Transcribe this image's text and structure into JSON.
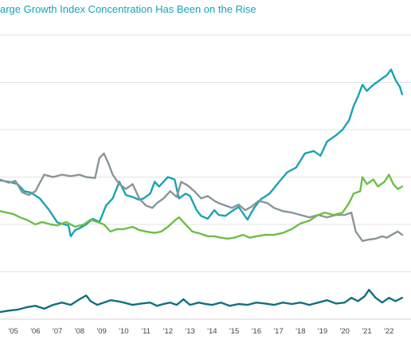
{
  "chart_data": {
    "type": "line",
    "title": "arge Growth Index Concentration Has Been on the Rise",
    "xlabel": "",
    "ylabel": "",
    "x_tick_labels": [
      "'05",
      "'06",
      "'07",
      "'08",
      "'09",
      "'10",
      "'11",
      "'12",
      "'13",
      "'14",
      "'15",
      "'16",
      "'17",
      "'18",
      "'19",
      "'20",
      "'21",
      "'22"
    ],
    "x_tick_years": [
      2005,
      2006,
      2007,
      2008,
      2009,
      2010,
      2011,
      2012,
      2013,
      2014,
      2015,
      2016,
      2017,
      2018,
      2019,
      2020,
      2021,
      2022
    ],
    "xlim": [
      2004.4,
      2023.0
    ],
    "ylim": [
      0,
      6
    ],
    "grid_lines": [
      1,
      2,
      3,
      4,
      5,
      6
    ],
    "grid": true,
    "legend": "none",
    "series": [
      {
        "color": "#1aa3b3",
        "points": [
          [
            2004.4,
            2.93
          ],
          [
            2004.8,
            2.9
          ],
          [
            2005.2,
            2.85
          ],
          [
            2005.5,
            2.7
          ],
          [
            2005.8,
            2.67
          ],
          [
            2006.2,
            2.55
          ],
          [
            2006.6,
            2.32
          ],
          [
            2007.0,
            2.04
          ],
          [
            2007.3,
            2.0
          ],
          [
            2007.5,
            1.98
          ],
          [
            2007.6,
            1.75
          ],
          [
            2007.8,
            1.88
          ],
          [
            2008.0,
            1.92
          ],
          [
            2008.3,
            2.0
          ],
          [
            2008.6,
            2.12
          ],
          [
            2008.9,
            2.05
          ],
          [
            2009.2,
            2.4
          ],
          [
            2009.5,
            2.55
          ],
          [
            2009.8,
            2.9
          ],
          [
            2010.1,
            2.62
          ],
          [
            2010.4,
            2.58
          ],
          [
            2010.7,
            2.52
          ],
          [
            2010.9,
            2.55
          ],
          [
            2011.2,
            2.65
          ],
          [
            2011.4,
            2.9
          ],
          [
            2011.6,
            2.8
          ],
          [
            2012.0,
            3.0
          ],
          [
            2012.3,
            2.95
          ],
          [
            2012.5,
            2.55
          ],
          [
            2012.8,
            2.65
          ],
          [
            2013.0,
            2.6
          ],
          [
            2013.3,
            2.3
          ],
          [
            2013.5,
            2.18
          ],
          [
            2013.8,
            2.12
          ],
          [
            2014.1,
            2.3
          ],
          [
            2014.3,
            2.2
          ],
          [
            2014.6,
            2.18
          ],
          [
            2014.9,
            2.28
          ],
          [
            2015.2,
            2.37
          ],
          [
            2015.6,
            2.1
          ],
          [
            2015.9,
            2.35
          ],
          [
            2016.2,
            2.53
          ],
          [
            2016.6,
            2.65
          ],
          [
            2017.0,
            2.88
          ],
          [
            2017.4,
            3.1
          ],
          [
            2017.8,
            3.2
          ],
          [
            2018.2,
            3.5
          ],
          [
            2018.6,
            3.55
          ],
          [
            2018.9,
            3.45
          ],
          [
            2019.2,
            3.75
          ],
          [
            2019.6,
            3.88
          ],
          [
            2019.9,
            4.0
          ],
          [
            2020.2,
            4.2
          ],
          [
            2020.4,
            4.5
          ],
          [
            2020.6,
            4.7
          ],
          [
            2020.8,
            4.95
          ],
          [
            2021.0,
            4.82
          ],
          [
            2021.3,
            4.95
          ],
          [
            2021.6,
            5.05
          ],
          [
            2021.9,
            5.15
          ],
          [
            2022.1,
            5.27
          ],
          [
            2022.3,
            5.05
          ],
          [
            2022.5,
            4.9
          ],
          [
            2022.6,
            4.75
          ]
        ]
      },
      {
        "color": "#8a9598",
        "points": [
          [
            2004.4,
            2.95
          ],
          [
            2004.8,
            2.88
          ],
          [
            2005.1,
            2.92
          ],
          [
            2005.4,
            2.68
          ],
          [
            2005.7,
            2.62
          ],
          [
            2006.0,
            2.7
          ],
          [
            2006.4,
            3.05
          ],
          [
            2006.8,
            3.0
          ],
          [
            2007.2,
            3.05
          ],
          [
            2007.6,
            3.02
          ],
          [
            2008.0,
            3.05
          ],
          [
            2008.3,
            3.0
          ],
          [
            2008.7,
            2.98
          ],
          [
            2008.9,
            3.4
          ],
          [
            2009.1,
            3.5
          ],
          [
            2009.3,
            3.3
          ],
          [
            2009.5,
            3.05
          ],
          [
            2009.8,
            2.85
          ],
          [
            2010.1,
            2.75
          ],
          [
            2010.4,
            2.85
          ],
          [
            2010.7,
            2.55
          ],
          [
            2011.0,
            2.4
          ],
          [
            2011.3,
            2.35
          ],
          [
            2011.5,
            2.45
          ],
          [
            2011.8,
            2.55
          ],
          [
            2012.1,
            2.7
          ],
          [
            2012.4,
            2.58
          ],
          [
            2012.6,
            2.9
          ],
          [
            2012.9,
            2.82
          ],
          [
            2013.2,
            2.7
          ],
          [
            2013.5,
            2.55
          ],
          [
            2013.8,
            2.6
          ],
          [
            2014.1,
            2.5
          ],
          [
            2014.3,
            2.45
          ],
          [
            2014.6,
            2.4
          ],
          [
            2014.9,
            2.35
          ],
          [
            2015.2,
            2.42
          ],
          [
            2015.5,
            2.3
          ],
          [
            2015.8,
            2.38
          ],
          [
            2016.1,
            2.5
          ],
          [
            2016.5,
            2.45
          ],
          [
            2016.8,
            2.35
          ],
          [
            2017.2,
            2.28
          ],
          [
            2017.6,
            2.25
          ],
          [
            2018.0,
            2.2
          ],
          [
            2018.4,
            2.15
          ],
          [
            2018.8,
            2.2
          ],
          [
            2019.2,
            2.15
          ],
          [
            2019.6,
            2.2
          ],
          [
            2020.0,
            2.2
          ],
          [
            2020.3,
            2.25
          ],
          [
            2020.5,
            1.85
          ],
          [
            2020.8,
            1.65
          ],
          [
            2021.1,
            1.68
          ],
          [
            2021.4,
            1.7
          ],
          [
            2021.7,
            1.75
          ],
          [
            2021.9,
            1.72
          ],
          [
            2022.2,
            1.8
          ],
          [
            2022.4,
            1.85
          ],
          [
            2022.6,
            1.78
          ]
        ]
      },
      {
        "color": "#6cbf45",
        "points": [
          [
            2004.4,
            2.28
          ],
          [
            2004.7,
            2.25
          ],
          [
            2005.0,
            2.22
          ],
          [
            2005.3,
            2.15
          ],
          [
            2005.6,
            2.1
          ],
          [
            2006.0,
            2.0
          ],
          [
            2006.3,
            2.05
          ],
          [
            2006.7,
            2.0
          ],
          [
            2007.0,
            1.98
          ],
          [
            2007.4,
            2.05
          ],
          [
            2007.8,
            1.95
          ],
          [
            2008.2,
            2.0
          ],
          [
            2008.5,
            2.1
          ],
          [
            2008.8,
            2.05
          ],
          [
            2009.1,
            2.0
          ],
          [
            2009.4,
            1.85
          ],
          [
            2009.7,
            1.9
          ],
          [
            2010.0,
            1.9
          ],
          [
            2010.4,
            1.95
          ],
          [
            2010.7,
            1.88
          ],
          [
            2011.0,
            1.85
          ],
          [
            2011.4,
            1.82
          ],
          [
            2011.7,
            1.85
          ],
          [
            2012.0,
            1.95
          ],
          [
            2012.3,
            2.08
          ],
          [
            2012.5,
            2.15
          ],
          [
            2012.8,
            2.0
          ],
          [
            2013.1,
            1.85
          ],
          [
            2013.5,
            1.8
          ],
          [
            2013.8,
            1.75
          ],
          [
            2014.1,
            1.75
          ],
          [
            2014.4,
            1.72
          ],
          [
            2014.7,
            1.7
          ],
          [
            2015.0,
            1.72
          ],
          [
            2015.4,
            1.78
          ],
          [
            2015.7,
            1.72
          ],
          [
            2016.0,
            1.75
          ],
          [
            2016.4,
            1.78
          ],
          [
            2016.8,
            1.78
          ],
          [
            2017.2,
            1.82
          ],
          [
            2017.6,
            1.9
          ],
          [
            2018.0,
            2.02
          ],
          [
            2018.4,
            2.08
          ],
          [
            2018.8,
            2.2
          ],
          [
            2019.1,
            2.25
          ],
          [
            2019.5,
            2.2
          ],
          [
            2019.9,
            2.25
          ],
          [
            2020.2,
            2.45
          ],
          [
            2020.4,
            2.65
          ],
          [
            2020.7,
            2.7
          ],
          [
            2020.8,
            3.0
          ],
          [
            2021.0,
            2.85
          ],
          [
            2021.3,
            2.95
          ],
          [
            2021.5,
            2.8
          ],
          [
            2021.8,
            2.9
          ],
          [
            2022.0,
            3.05
          ],
          [
            2022.2,
            2.85
          ],
          [
            2022.4,
            2.75
          ],
          [
            2022.6,
            2.8
          ]
        ]
      },
      {
        "color": "#136f7e",
        "points": [
          [
            2004.4,
            0.15
          ],
          [
            2004.8,
            0.18
          ],
          [
            2005.2,
            0.2
          ],
          [
            2005.6,
            0.25
          ],
          [
            2006.0,
            0.28
          ],
          [
            2006.4,
            0.22
          ],
          [
            2006.8,
            0.3
          ],
          [
            2007.2,
            0.35
          ],
          [
            2007.6,
            0.3
          ],
          [
            2008.0,
            0.42
          ],
          [
            2008.3,
            0.5
          ],
          [
            2008.5,
            0.38
          ],
          [
            2008.8,
            0.3
          ],
          [
            2009.1,
            0.35
          ],
          [
            2009.4,
            0.4
          ],
          [
            2009.7,
            0.38
          ],
          [
            2010.0,
            0.35
          ],
          [
            2010.4,
            0.3
          ],
          [
            2010.8,
            0.33
          ],
          [
            2011.2,
            0.35
          ],
          [
            2011.5,
            0.28
          ],
          [
            2011.8,
            0.32
          ],
          [
            2012.1,
            0.35
          ],
          [
            2012.4,
            0.3
          ],
          [
            2012.7,
            0.42
          ],
          [
            2013.0,
            0.3
          ],
          [
            2013.4,
            0.35
          ],
          [
            2013.7,
            0.32
          ],
          [
            2014.0,
            0.3
          ],
          [
            2014.4,
            0.35
          ],
          [
            2014.8,
            0.28
          ],
          [
            2015.2,
            0.32
          ],
          [
            2015.6,
            0.3
          ],
          [
            2016.0,
            0.35
          ],
          [
            2016.4,
            0.33
          ],
          [
            2016.8,
            0.3
          ],
          [
            2017.2,
            0.35
          ],
          [
            2017.6,
            0.32
          ],
          [
            2018.0,
            0.35
          ],
          [
            2018.4,
            0.3
          ],
          [
            2018.8,
            0.35
          ],
          [
            2019.2,
            0.4
          ],
          [
            2019.6,
            0.33
          ],
          [
            2020.0,
            0.35
          ],
          [
            2020.3,
            0.45
          ],
          [
            2020.6,
            0.38
          ],
          [
            2020.9,
            0.48
          ],
          [
            2021.1,
            0.62
          ],
          [
            2021.4,
            0.45
          ],
          [
            2021.7,
            0.35
          ],
          [
            2022.0,
            0.45
          ],
          [
            2022.3,
            0.38
          ],
          [
            2022.6,
            0.45
          ]
        ]
      }
    ]
  }
}
